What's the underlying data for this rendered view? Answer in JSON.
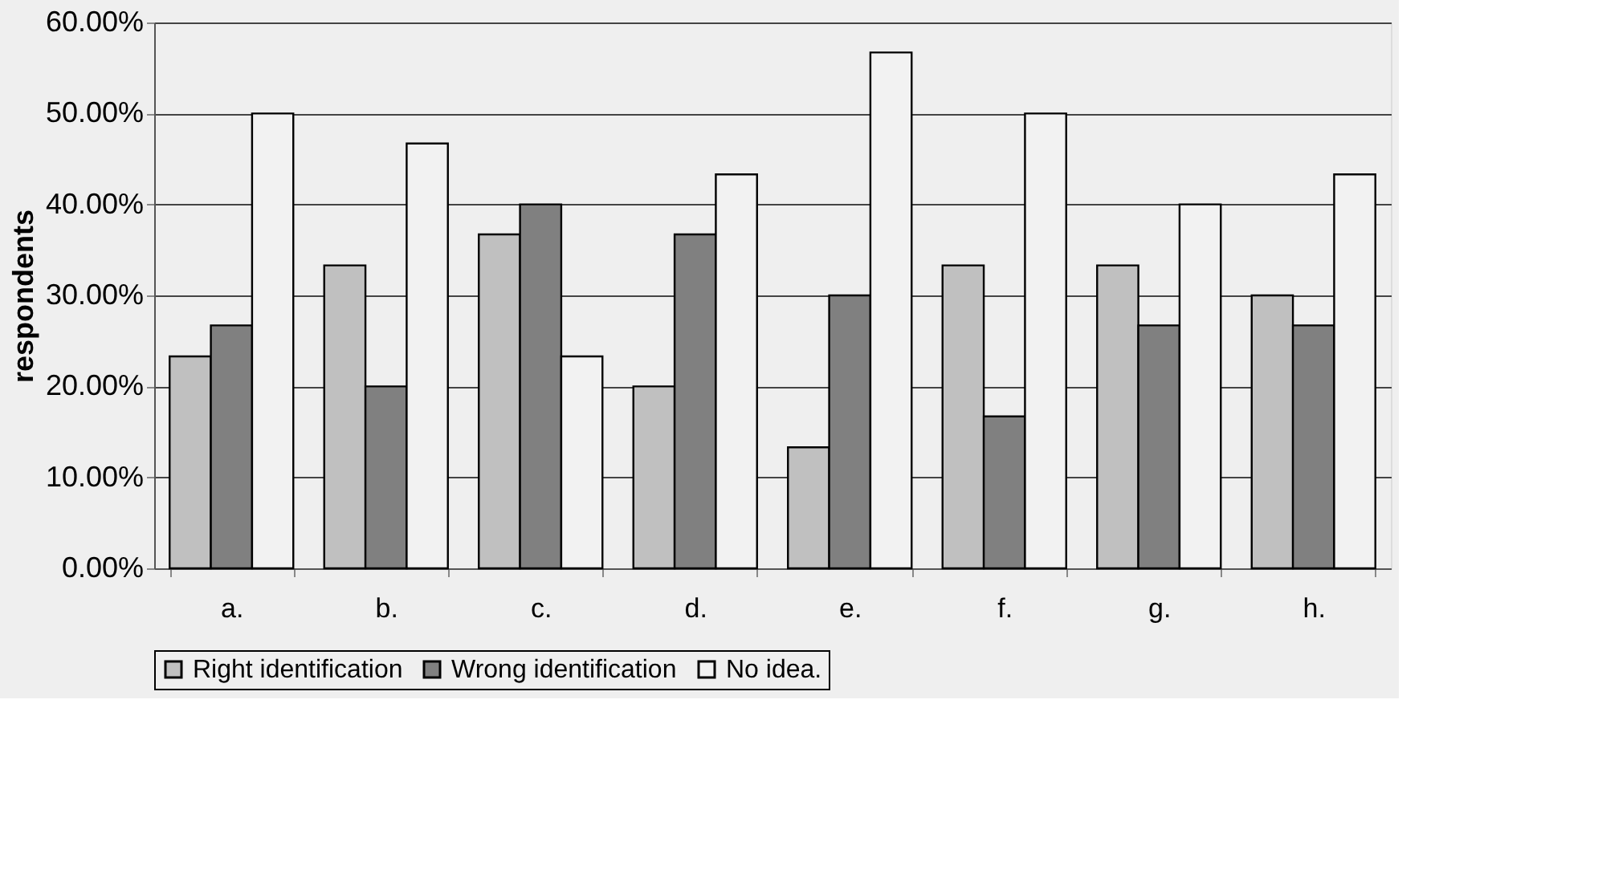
{
  "chart_data": {
    "type": "bar",
    "ylabel": "respondents",
    "categories": [
      "a.",
      "b.",
      "c.",
      "d.",
      "e.",
      "f.",
      "g.",
      "h."
    ],
    "series": [
      {
        "name": "Right identification",
        "color": "#c0c0c0",
        "values": [
          23.3,
          33.3,
          36.7,
          20.0,
          13.3,
          33.3,
          33.3,
          30.0
        ]
      },
      {
        "name": "Wrong identification",
        "color": "#808080",
        "values": [
          26.7,
          20.0,
          40.0,
          36.7,
          30.0,
          16.7,
          26.7,
          26.7
        ]
      },
      {
        "name": "No idea.",
        "color": "#f2f2f2",
        "values": [
          50.0,
          46.7,
          23.3,
          43.3,
          56.7,
          50.0,
          40.0,
          43.3
        ]
      }
    ],
    "ylim": [
      0,
      60
    ],
    "yticks": [
      {
        "value": 0,
        "label": "0.00%"
      },
      {
        "value": 10,
        "label": "10.00%"
      },
      {
        "value": 20,
        "label": "20.00%"
      },
      {
        "value": 30,
        "label": "30.00%"
      },
      {
        "value": 40,
        "label": "40.00%"
      },
      {
        "value": 50,
        "label": "50.00%"
      },
      {
        "value": 60,
        "label": "60.00%"
      }
    ],
    "grid": "y",
    "legend": "bottom"
  }
}
